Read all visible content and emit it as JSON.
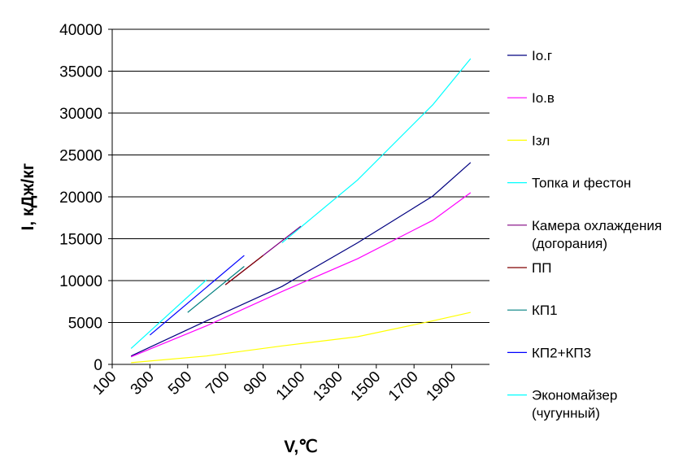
{
  "chart_data": {
    "type": "line",
    "xlabel": "V,℃",
    "ylabel": "I, кДж/кг",
    "xlim": [
      100,
      2100
    ],
    "ylim": [
      0,
      40000
    ],
    "x_ticks": [
      "100",
      "300",
      "500",
      "700",
      "900",
      "1100",
      "1300",
      "1500",
      "1700",
      "1900"
    ],
    "y_ticks": [
      "0",
      "5000",
      "10000",
      "15000",
      "20000",
      "25000",
      "30000",
      "35000",
      "40000"
    ],
    "grid": "horizontal",
    "legend_position": "right",
    "series": [
      {
        "name": "Io.г",
        "color": "#000080",
        "x": [
          200,
          600,
          1000,
          1400,
          1800,
          2000
        ],
        "y": [
          1000,
          5200,
          9300,
          14500,
          20100,
          24100
        ]
      },
      {
        "name": "Io.в",
        "color": "#ff00ff",
        "x": [
          200,
          600,
          1000,
          1400,
          1800,
          2000
        ],
        "y": [
          900,
          4600,
          8700,
          12600,
          17200,
          20500
        ]
      },
      {
        "name": "Iзл",
        "color": "#ffff00",
        "x": [
          200,
          600,
          1000,
          1400,
          1800,
          2000
        ],
        "y": [
          200,
          1000,
          2200,
          3300,
          5200,
          6200
        ]
      },
      {
        "name": "Топка и фестон",
        "color": "#00ffff",
        "x": [
          1000,
          1400,
          1800,
          2000
        ],
        "y": [
          14500,
          22000,
          31000,
          36500
        ]
      },
      {
        "name": "Камера охлаждения (догорания)",
        "color": "#800080",
        "x": [
          700,
          1100
        ],
        "y": [
          9500,
          16500
        ]
      },
      {
        "name": "ПП",
        "color": "#800000",
        "x": [
          700,
          900
        ],
        "y": [
          9500,
          13000
        ]
      },
      {
        "name": "КП1",
        "color": "#008080",
        "x": [
          500,
          800
        ],
        "y": [
          6200,
          11700
        ]
      },
      {
        "name": "КП2+КП3",
        "color": "#0000ff",
        "x": [
          300,
          800
        ],
        "y": [
          3500,
          13000
        ]
      },
      {
        "name": "Экономайзер (чугунный)",
        "color": "#00ffff",
        "x": [
          200,
          600
        ],
        "y": [
          1900,
          10100
        ]
      }
    ]
  }
}
